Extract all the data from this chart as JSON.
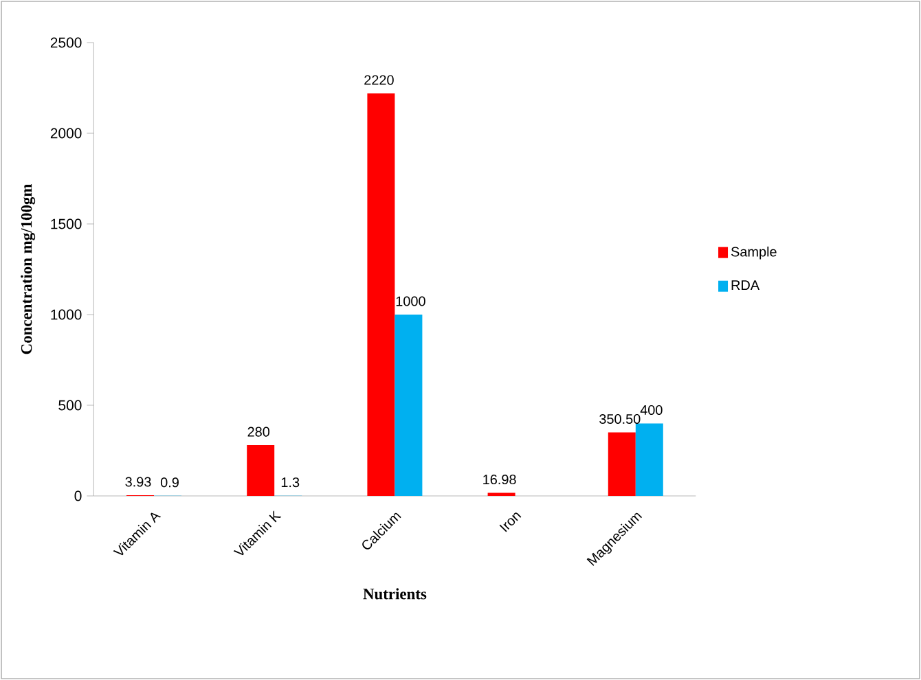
{
  "chart_data": {
    "type": "bar",
    "xlabel": "Nutrients",
    "ylabel": "Concentration  mg/100gm",
    "categories": [
      "Vitamin A",
      "Vitamin K",
      "Calcium",
      "Iron",
      "Magnesium"
    ],
    "series": [
      {
        "name": "Sample",
        "color": "#ff0000",
        "values": [
          3.93,
          280,
          2220,
          16.98,
          350.5
        ],
        "value_labels": [
          "3.93",
          "280",
          "2220",
          "16.98",
          "350.50"
        ]
      },
      {
        "name": "RDA",
        "color": "#00b0f0",
        "values": [
          0.9,
          1.3,
          1000,
          null,
          400
        ],
        "value_labels": [
          "0.9",
          "1.3",
          "1000",
          null,
          "400"
        ]
      }
    ],
    "ylim": [
      0,
      2500
    ],
    "yticks": [
      0,
      500,
      1000,
      1500,
      2000,
      2500
    ],
    "grid": false,
    "legend": "right"
  }
}
